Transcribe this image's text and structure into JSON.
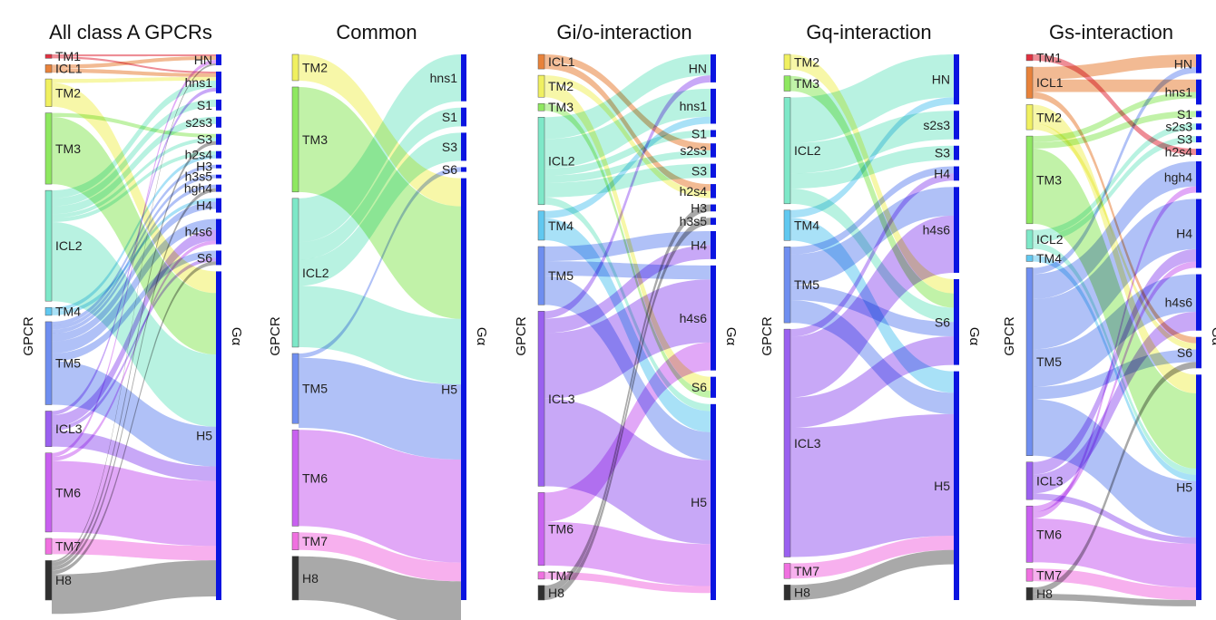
{
  "figure_labels": {
    "left_axis": "GPCR",
    "right_axis": "Gα"
  },
  "colors": {
    "TM1": "#e03040",
    "ICL1": "#e8823a",
    "TM2": "#f0f060",
    "TM3": "#8ee860",
    "ICL2": "#7ee8c8",
    "TM4": "#60c8f0",
    "TM5": "#6f8ef0",
    "ICL3": "#9a60f0",
    "TM6": "#c860f0",
    "TM7": "#f070e0",
    "H8": "#707070",
    "galpha": "#0a14e0"
  },
  "chart_data": [
    {
      "type": "sankey",
      "title": "All class A GPCRs",
      "left_nodes": [
        {
          "name": "TM1",
          "value": 1
        },
        {
          "name": "ICL1",
          "value": 2
        },
        {
          "name": "TM2",
          "value": 7
        },
        {
          "name": "TM3",
          "value": 18
        },
        {
          "name": "ICL2",
          "value": 28
        },
        {
          "name": "TM4",
          "value": 2
        },
        {
          "name": "TM5",
          "value": 21
        },
        {
          "name": "ICL3",
          "value": 9
        },
        {
          "name": "TM6",
          "value": 20
        },
        {
          "name": "TM7",
          "value": 4
        },
        {
          "name": "H8",
          "value": 10
        }
      ],
      "right_nodes": [
        {
          "name": "HN",
          "value": 3
        },
        {
          "name": "hns1",
          "value": 6
        },
        {
          "name": "S1",
          "value": 3
        },
        {
          "name": "s2s3",
          "value": 3
        },
        {
          "name": "S3",
          "value": 3
        },
        {
          "name": "h2s4",
          "value": 2
        },
        {
          "name": "H3",
          "value": 1
        },
        {
          "name": "h3s5",
          "value": 1
        },
        {
          "name": "hgh4",
          "value": 2
        },
        {
          "name": "H4",
          "value": 4
        },
        {
          "name": "h4s6",
          "value": 7
        },
        {
          "name": "S6",
          "value": 4
        },
        {
          "name": "H5",
          "value": 91
        }
      ],
      "links": [
        {
          "source": "TM1",
          "target": "HN",
          "value": 0.5
        },
        {
          "source": "TM1",
          "target": "hns1",
          "value": 0.5
        },
        {
          "source": "ICL1",
          "target": "HN",
          "value": 1
        },
        {
          "source": "ICL1",
          "target": "hns1",
          "value": 1
        },
        {
          "source": "TM2",
          "target": "hns1",
          "value": 1
        },
        {
          "source": "TM2",
          "target": "H5",
          "value": 6
        },
        {
          "source": "TM3",
          "target": "S3",
          "value": 1
        },
        {
          "source": "TM3",
          "target": "H5",
          "value": 17
        },
        {
          "source": "ICL2",
          "target": "hns1",
          "value": 2
        },
        {
          "source": "ICL2",
          "target": "S1",
          "value": 2
        },
        {
          "source": "ICL2",
          "target": "s2s3",
          "value": 2
        },
        {
          "source": "ICL2",
          "target": "S3",
          "value": 1
        },
        {
          "source": "ICL2",
          "target": "h2s4",
          "value": 1
        },
        {
          "source": "ICL2",
          "target": "H5",
          "value": 20
        },
        {
          "source": "TM4",
          "target": "h2s4",
          "value": 1
        },
        {
          "source": "TM4",
          "target": "H4",
          "value": 1
        },
        {
          "source": "TM5",
          "target": "H3",
          "value": 1
        },
        {
          "source": "TM5",
          "target": "h3s5",
          "value": 1
        },
        {
          "source": "TM5",
          "target": "hgh4",
          "value": 1
        },
        {
          "source": "TM5",
          "target": "H4",
          "value": 2
        },
        {
          "source": "TM5",
          "target": "h4s6",
          "value": 3
        },
        {
          "source": "TM5",
          "target": "S6",
          "value": 2
        },
        {
          "source": "TM5",
          "target": "H5",
          "value": 11
        },
        {
          "source": "ICL3",
          "target": "hns1",
          "value": 1
        },
        {
          "source": "ICL3",
          "target": "h4s6",
          "value": 3
        },
        {
          "source": "ICL3",
          "target": "S6",
          "value": 1
        },
        {
          "source": "ICL3",
          "target": "H5",
          "value": 4
        },
        {
          "source": "TM6",
          "target": "HN",
          "value": 1
        },
        {
          "source": "TM6",
          "target": "h4s6",
          "value": 1
        },
        {
          "source": "TM6",
          "target": "H5",
          "value": 18
        },
        {
          "source": "TM7",
          "target": "H5",
          "value": 4
        },
        {
          "source": "H8",
          "target": "HN",
          "value": 0.5
        },
        {
          "source": "H8",
          "target": "S3",
          "value": 1
        },
        {
          "source": "H8",
          "target": "hgh4",
          "value": 1
        },
        {
          "source": "H8",
          "target": "S6",
          "value": 1
        },
        {
          "source": "H8",
          "target": "H5",
          "value": 10
        }
      ]
    },
    {
      "type": "sankey",
      "title": "Common",
      "left_nodes": [
        {
          "name": "TM2",
          "value": 3
        },
        {
          "name": "TM3",
          "value": 12
        },
        {
          "name": "ICL2",
          "value": 17
        },
        {
          "name": "TM5",
          "value": 8
        },
        {
          "name": "TM6",
          "value": 11
        },
        {
          "name": "TM7",
          "value": 2
        },
        {
          "name": "H8",
          "value": 5
        }
      ],
      "right_nodes": [
        {
          "name": "hns1",
          "value": 5
        },
        {
          "name": "S1",
          "value": 2
        },
        {
          "name": "S3",
          "value": 3
        },
        {
          "name": "S6",
          "value": 0.5
        },
        {
          "name": "H5",
          "value": 45
        }
      ],
      "links": [
        {
          "source": "TM2",
          "target": "H5",
          "value": 3
        },
        {
          "source": "TM3",
          "target": "H5",
          "value": 12
        },
        {
          "source": "ICL2",
          "target": "hns1",
          "value": 5
        },
        {
          "source": "ICL2",
          "target": "S1",
          "value": 2
        },
        {
          "source": "ICL2",
          "target": "S3",
          "value": 3
        },
        {
          "source": "ICL2",
          "target": "H5",
          "value": 7
        },
        {
          "source": "TM5",
          "target": "S6",
          "value": 0.5
        },
        {
          "source": "TM5",
          "target": "H5",
          "value": 8
        },
        {
          "source": "TM6",
          "target": "H5",
          "value": 11
        },
        {
          "source": "TM7",
          "target": "H5",
          "value": 2
        },
        {
          "source": "H8",
          "target": "H5",
          "value": 5
        }
      ]
    },
    {
      "type": "sankey",
      "title": "Gi/o-interaction",
      "left_nodes": [
        {
          "name": "ICL1",
          "value": 2
        },
        {
          "name": "TM2",
          "value": 3
        },
        {
          "name": "TM3",
          "value": 1
        },
        {
          "name": "ICL2",
          "value": 12
        },
        {
          "name": "TM4",
          "value": 4
        },
        {
          "name": "TM5",
          "value": 8
        },
        {
          "name": "ICL3",
          "value": 24
        },
        {
          "name": "TM6",
          "value": 10
        },
        {
          "name": "TM7",
          "value": 1
        },
        {
          "name": "H8",
          "value": 2
        }
      ],
      "right_nodes": [
        {
          "name": "HN",
          "value": 4
        },
        {
          "name": "hns1",
          "value": 5
        },
        {
          "name": "S1",
          "value": 1
        },
        {
          "name": "s2s3",
          "value": 2
        },
        {
          "name": "S3",
          "value": 2
        },
        {
          "name": "h2s4",
          "value": 2
        },
        {
          "name": "H3",
          "value": 1
        },
        {
          "name": "h3s5",
          "value": 1
        },
        {
          "name": "H4",
          "value": 4
        },
        {
          "name": "h4s6",
          "value": 15
        },
        {
          "name": "S6",
          "value": 3
        },
        {
          "name": "H5",
          "value": 28
        }
      ],
      "links": [
        {
          "source": "ICL1",
          "target": "s2s3",
          "value": 1
        },
        {
          "source": "ICL1",
          "target": "h2s4",
          "value": 1
        },
        {
          "source": "TM2",
          "target": "h2s4",
          "value": 1
        },
        {
          "source": "TM2",
          "target": "S6",
          "value": 2
        },
        {
          "source": "TM3",
          "target": "S6",
          "value": 1
        },
        {
          "source": "ICL2",
          "target": "HN",
          "value": 3
        },
        {
          "source": "ICL2",
          "target": "hns1",
          "value": 4
        },
        {
          "source": "ICL2",
          "target": "S1",
          "value": 1
        },
        {
          "source": "ICL2",
          "target": "s2s3",
          "value": 1
        },
        {
          "source": "ICL2",
          "target": "S3",
          "value": 2
        },
        {
          "source": "ICL2",
          "target": "H5",
          "value": 1
        },
        {
          "source": "TM4",
          "target": "hns1",
          "value": 1
        },
        {
          "source": "TM4",
          "target": "H5",
          "value": 3
        },
        {
          "source": "TM5",
          "target": "H4",
          "value": 2
        },
        {
          "source": "TM5",
          "target": "h4s6",
          "value": 2
        },
        {
          "source": "TM5",
          "target": "H5",
          "value": 4
        },
        {
          "source": "ICL3",
          "target": "HN",
          "value": 1
        },
        {
          "source": "ICL3",
          "target": "H4",
          "value": 2
        },
        {
          "source": "ICL3",
          "target": "h4s6",
          "value": 9
        },
        {
          "source": "ICL3",
          "target": "H5",
          "value": 12
        },
        {
          "source": "TM6",
          "target": "h4s6",
          "value": 4
        },
        {
          "source": "TM6",
          "target": "H5",
          "value": 6
        },
        {
          "source": "TM7",
          "target": "H5",
          "value": 1
        },
        {
          "source": "H8",
          "target": "H3",
          "value": 1
        },
        {
          "source": "H8",
          "target": "h3s5",
          "value": 1
        }
      ]
    },
    {
      "type": "sankey",
      "title": "Gq-interaction",
      "left_nodes": [
        {
          "name": "TM2",
          "value": 2
        },
        {
          "name": "TM3",
          "value": 2
        },
        {
          "name": "ICL2",
          "value": 14
        },
        {
          "name": "TM4",
          "value": 4
        },
        {
          "name": "TM5",
          "value": 10
        },
        {
          "name": "ICL3",
          "value": 30
        },
        {
          "name": "TM7",
          "value": 2
        },
        {
          "name": "H8",
          "value": 2
        }
      ],
      "right_nodes": [
        {
          "name": "HN",
          "value": 7
        },
        {
          "name": "s2s3",
          "value": 4
        },
        {
          "name": "S3",
          "value": 2
        },
        {
          "name": "H4",
          "value": 2
        },
        {
          "name": "h4s6",
          "value": 12
        },
        {
          "name": "S6",
          "value": 12
        },
        {
          "name": "H5",
          "value": 32
        }
      ],
      "links": [
        {
          "source": "TM2",
          "target": "S6",
          "value": 2
        },
        {
          "source": "TM3",
          "target": "S6",
          "value": 2
        },
        {
          "source": "ICL2",
          "target": "HN",
          "value": 6
        },
        {
          "source": "ICL2",
          "target": "s2s3",
          "value": 4
        },
        {
          "source": "ICL2",
          "target": "S3",
          "value": 2
        },
        {
          "source": "ICL2",
          "target": "S6",
          "value": 2
        },
        {
          "source": "TM4",
          "target": "HN",
          "value": 1
        },
        {
          "source": "TM4",
          "target": "H5",
          "value": 3
        },
        {
          "source": "TM5",
          "target": "H4",
          "value": 1
        },
        {
          "source": "TM5",
          "target": "h4s6",
          "value": 4
        },
        {
          "source": "TM5",
          "target": "S6",
          "value": 2
        },
        {
          "source": "TM5",
          "target": "H5",
          "value": 3
        },
        {
          "source": "ICL3",
          "target": "H4",
          "value": 1
        },
        {
          "source": "ICL3",
          "target": "h4s6",
          "value": 8
        },
        {
          "source": "ICL3",
          "target": "S6",
          "value": 4
        },
        {
          "source": "ICL3",
          "target": "H5",
          "value": 17
        },
        {
          "source": "TM7",
          "target": "H5",
          "value": 2
        },
        {
          "source": "H8",
          "target": "H5",
          "value": 2
        }
      ]
    },
    {
      "type": "sankey",
      "title": "Gs-interaction",
      "left_nodes": [
        {
          "name": "TM1",
          "value": 1
        },
        {
          "name": "ICL1",
          "value": 5
        },
        {
          "name": "TM2",
          "value": 4
        },
        {
          "name": "TM3",
          "value": 14
        },
        {
          "name": "ICL2",
          "value": 3
        },
        {
          "name": "TM4",
          "value": 1
        },
        {
          "name": "TM5",
          "value": 30
        },
        {
          "name": "ICL3",
          "value": 6
        },
        {
          "name": "TM6",
          "value": 9
        },
        {
          "name": "TM7",
          "value": 2
        },
        {
          "name": "H8",
          "value": 2
        }
      ],
      "right_nodes": [
        {
          "name": "HN",
          "value": 3
        },
        {
          "name": "hns1",
          "value": 4
        },
        {
          "name": "S1",
          "value": 1
        },
        {
          "name": "s2s3",
          "value": 1
        },
        {
          "name": "S3",
          "value": 1
        },
        {
          "name": "h2s4",
          "value": 1
        },
        {
          "name": "hgh4",
          "value": 5
        },
        {
          "name": "H4",
          "value": 11
        },
        {
          "name": "h4s6",
          "value": 9
        },
        {
          "name": "S6",
          "value": 5
        },
        {
          "name": "H5",
          "value": 36
        }
      ],
      "links": [
        {
          "source": "TM1",
          "target": "h2s4",
          "value": 1
        },
        {
          "source": "ICL1",
          "target": "HN",
          "value": 2
        },
        {
          "source": "ICL1",
          "target": "hns1",
          "value": 2
        },
        {
          "source": "ICL1",
          "target": "S6",
          "value": 1
        },
        {
          "source": "TM2",
          "target": "H5",
          "value": 3
        },
        {
          "source": "TM2",
          "target": "S6",
          "value": 1
        },
        {
          "source": "TM3",
          "target": "hns1",
          "value": 1
        },
        {
          "source": "TM3",
          "target": "S1",
          "value": 1
        },
        {
          "source": "TM3",
          "target": "H5",
          "value": 12
        },
        {
          "source": "ICL2",
          "target": "s2s3",
          "value": 1
        },
        {
          "source": "ICL2",
          "target": "S3",
          "value": 1
        },
        {
          "source": "ICL2",
          "target": "H5",
          "value": 1
        },
        {
          "source": "TM4",
          "target": "H5",
          "value": 1
        },
        {
          "source": "TM5",
          "target": "HN",
          "value": 1
        },
        {
          "source": "TM5",
          "target": "hgh4",
          "value": 4
        },
        {
          "source": "TM5",
          "target": "H4",
          "value": 8
        },
        {
          "source": "TM5",
          "target": "h4s6",
          "value": 6
        },
        {
          "source": "TM5",
          "target": "S6",
          "value": 2
        },
        {
          "source": "TM5",
          "target": "H5",
          "value": 9
        },
        {
          "source": "ICL3",
          "target": "H4",
          "value": 2
        },
        {
          "source": "ICL3",
          "target": "h4s6",
          "value": 3
        },
        {
          "source": "ICL3",
          "target": "H5",
          "value": 1
        },
        {
          "source": "TM6",
          "target": "H4",
          "value": 1
        },
        {
          "source": "TM6",
          "target": "hgh4",
          "value": 1
        },
        {
          "source": "TM6",
          "target": "H5",
          "value": 7
        },
        {
          "source": "TM7",
          "target": "H5",
          "value": 2
        },
        {
          "source": "H8",
          "target": "S6",
          "value": 1
        },
        {
          "source": "H8",
          "target": "H5",
          "value": 1
        }
      ]
    }
  ]
}
